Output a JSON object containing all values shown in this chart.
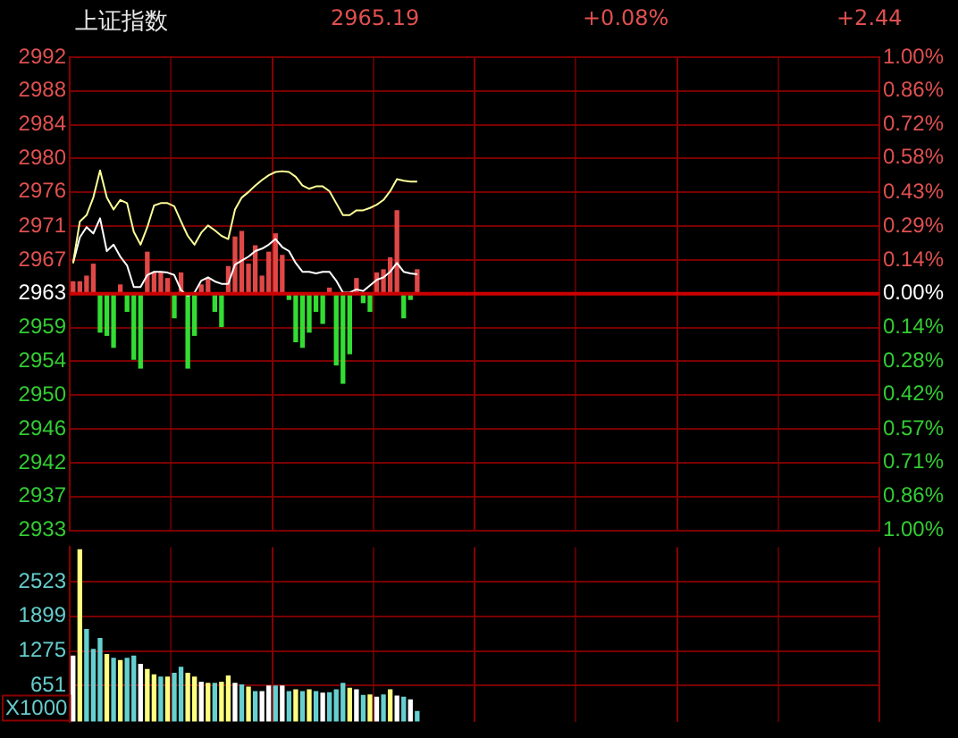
{
  "chart_data": [
    {
      "type": "line",
      "title": "上证指数",
      "annotations": [
        "2965.19",
        "+0.08%",
        "+2.44"
      ],
      "categories": [
        null,
        null,
        null,
        null,
        null,
        null,
        null,
        null,
        null,
        null,
        null,
        null,
        null,
        null,
        null,
        null,
        null,
        null,
        null,
        null,
        null,
        null,
        null,
        null,
        null,
        null,
        null,
        null,
        null,
        null,
        null,
        null,
        null,
        null,
        null,
        null,
        null,
        null,
        null,
        null,
        null,
        null,
        null,
        null,
        null,
        null,
        null,
        null,
        null,
        null,
        null,
        null,
        null,
        null,
        null,
        null,
        null,
        null,
        null,
        null,
        null,
        null,
        null,
        null,
        null,
        null,
        null,
        null,
        null,
        null,
        null,
        null,
        null,
        null,
        null,
        null,
        null,
        null,
        null,
        null,
        null,
        null,
        null,
        null,
        null,
        null,
        null,
        null,
        null,
        null,
        null,
        null,
        null,
        null,
        null,
        null,
        null,
        null,
        null,
        null,
        null,
        null,
        null,
        null,
        null,
        null,
        null,
        null,
        null,
        null,
        null,
        null,
        null,
        null,
        null,
        null,
        null,
        null,
        null,
        null
      ],
      "ylim": [
        2933.12,
        2992.38
      ],
      "yticks": [
        {
          "value": 2933.12,
          "label": "2933"
        },
        {
          "value": 2937.36,
          "label": "2937"
        },
        {
          "value": 2941.59,
          "label": "2942"
        },
        {
          "value": 2945.82,
          "label": "2946"
        },
        {
          "value": 2950.05,
          "label": "2950"
        },
        {
          "value": 2954.29,
          "label": "2954"
        },
        {
          "value": 2958.52,
          "label": "2959"
        },
        {
          "value": 2962.75,
          "label": "2963"
        },
        {
          "value": 2966.98,
          "label": "2967"
        },
        {
          "value": 2971.22,
          "label": "2971"
        },
        {
          "value": 2975.5,
          "label": "2976"
        },
        {
          "value": 2979.68,
          "label": "2980"
        },
        {
          "value": 2983.91,
          "label": "2984"
        },
        {
          "value": 2988.15,
          "label": "2988"
        },
        {
          "value": 2992.38,
          "label": "2992"
        }
      ],
      "y2lim": [
        -1,
        1
      ],
      "y2ticks": [
        {
          "value": -1,
          "label": "1.00%"
        },
        {
          "value": -0.857,
          "label": "0.86%"
        },
        {
          "value": -0.714,
          "label": "0.71%"
        },
        {
          "value": -0.571,
          "label": "0.57%"
        },
        {
          "value": -0.424,
          "label": "0.42%"
        },
        {
          "value": -0.284,
          "label": "0.28%"
        },
        {
          "value": -0.143,
          "label": "0.14%"
        },
        {
          "value": 0,
          "label": "0.00%"
        },
        {
          "value": 0.143,
          "label": "0.14%"
        },
        {
          "value": 0.286,
          "label": "0.29%"
        },
        {
          "value": 0.429,
          "label": "0.43%"
        },
        {
          "value": 0.575,
          "label": "0.58%"
        },
        {
          "value": 0.715,
          "label": "0.72%"
        },
        {
          "value": 0.857,
          "label": "0.86%"
        },
        {
          "value": 1,
          "label": "1.00%"
        }
      ],
      "grid": true,
      "tick_labels": "y",
      "ref_lines": [
        {
          "axis": "y",
          "value": 2962.75,
          "color": "#cc0000"
        }
      ],
      "series": [
        {
          "type": "bar",
          "base": [
            2962.75,
            2962.75,
            2962.75,
            2962.75,
            2962.75,
            2962.75,
            2962.75,
            2962.75,
            2962.75,
            2962.75,
            2962.75,
            2962.75,
            2962.75,
            2962.75,
            2962.75,
            2962.75,
            2962.75,
            2962.75,
            2962.75,
            2962.75,
            2962.75,
            2962.75,
            2962.75,
            2962.75,
            2962.75,
            2962.75,
            2962.75,
            2962.75,
            2962.75,
            2962.75,
            2962.75,
            2962.75,
            2962.75,
            2962.75,
            2962.75,
            2962.75,
            2962.75,
            2962.75,
            2962.75,
            2962.75,
            2962.75,
            2962.75,
            2962.75,
            2962.75,
            2962.75,
            2962.75,
            2962.75,
            2962.75,
            2962.75,
            2962.75,
            2962.75,
            2962.75,
            null,
            null,
            null,
            null,
            null,
            null,
            null,
            null,
            null,
            null,
            null,
            null,
            null,
            null,
            null,
            null,
            null,
            null,
            null,
            null,
            null,
            null,
            null,
            null,
            null,
            null,
            null,
            null,
            null,
            null,
            null,
            null,
            null,
            null,
            null,
            null,
            null,
            null,
            null,
            null,
            null,
            null,
            null,
            null,
            null,
            null,
            null,
            null,
            null,
            null,
            null,
            null,
            null,
            null,
            null,
            null,
            null,
            null,
            null,
            null,
            null,
            null,
            null,
            null,
            null,
            null,
            null,
            null
          ],
          "values": [
            1.5,
            1.5,
            2.2,
            3.7,
            -4.8,
            -5.2,
            -6.7,
            1.1,
            -2.2,
            -8.2,
            -9.3,
            5.2,
            2.6,
            2.6,
            1.9,
            -3.0,
            2.6,
            -9.3,
            -5.2,
            1.1,
            1.9,
            -2.2,
            -4.1,
            3.4,
            7.1,
            7.8,
            3.7,
            6.0,
            2.2,
            5.2,
            7.5,
            4.8,
            -0.7,
            -6.0,
            -6.7,
            -4.8,
            -2.2,
            -3.7,
            0.7,
            -8.9,
            -11.2,
            -7.5,
            1.9,
            -1.1,
            -2.2,
            2.6,
            3.0,
            4.5,
            10.4,
            -3.0,
            -0.7,
            3.0,
            null,
            null,
            null,
            null,
            null,
            null,
            null,
            null,
            null,
            null,
            null,
            null,
            null,
            null,
            null,
            null,
            null,
            null,
            null,
            null,
            null,
            null,
            null,
            null,
            null,
            null,
            null,
            null,
            null,
            null,
            null,
            null,
            null,
            null,
            null,
            null,
            null,
            null,
            null,
            null,
            null,
            null,
            null,
            null,
            null,
            null,
            null,
            null,
            null,
            null,
            null,
            null,
            null,
            null,
            null,
            null,
            null,
            null,
            null,
            null,
            null,
            null,
            null,
            null,
            null,
            null,
            null,
            null
          ],
          "colors": [
            "#e04848",
            "#e04848",
            "#e04848",
            "#e04848",
            "#33dd33",
            "#33dd33",
            "#33dd33",
            "#e04848",
            "#33dd33",
            "#33dd33",
            "#33dd33",
            "#e04848",
            "#e04848",
            "#e04848",
            "#e04848",
            "#33dd33",
            "#e04848",
            "#33dd33",
            "#33dd33",
            "#e04848",
            "#e04848",
            "#33dd33",
            "#33dd33",
            "#e04848",
            "#e04848",
            "#e04848",
            "#e04848",
            "#e04848",
            "#e04848",
            "#e04848",
            "#e04848",
            "#e04848",
            "#33dd33",
            "#33dd33",
            "#33dd33",
            "#33dd33",
            "#33dd33",
            "#33dd33",
            "#e04848",
            "#33dd33",
            "#33dd33",
            "#33dd33",
            "#e04848",
            "#33dd33",
            "#33dd33",
            "#e04848",
            "#e04848",
            "#e04848",
            "#e04848",
            "#33dd33",
            "#33dd33",
            "#e04848",
            null,
            null,
            null,
            null,
            null,
            null,
            null,
            null,
            null,
            null,
            null,
            null,
            null,
            null,
            null,
            null,
            null,
            null,
            null,
            null,
            null,
            null,
            null,
            null,
            null,
            null,
            null,
            null,
            null,
            null,
            null,
            null,
            null,
            null,
            null,
            null,
            null,
            null,
            null,
            null,
            null,
            null,
            null,
            null,
            null,
            null,
            null,
            null,
            null,
            null,
            null,
            null,
            null,
            null,
            null,
            null,
            null,
            null,
            null,
            null,
            null,
            null,
            null,
            null,
            null,
            null,
            null,
            null
          ]
        },
        {
          "type": "line",
          "color": "#ffff99",
          "values": [
            2966.6,
            2971.8,
            2972.6,
            2974.8,
            2978.2,
            2974.8,
            2973.3,
            2974.5,
            2974.1,
            2970.5,
            2968.9,
            2971.1,
            2973.8,
            2974.1,
            2974.1,
            2973.7,
            2971.8,
            2970.0,
            2968.9,
            2970.4,
            2971.3,
            2970.7,
            2970.0,
            2969.6,
            2973.3,
            2974.8,
            2975.5,
            2976.3,
            2977.0,
            2977.6,
            2978.0,
            2978.1,
            2978.0,
            2977.4,
            2976.3,
            2975.9,
            2976.2,
            2976.2,
            2975.6,
            2974.1,
            2972.6,
            2972.6,
            2973.2,
            2973.2,
            2973.5,
            2973.9,
            2974.5,
            2975.6,
            2977.1,
            2976.9,
            2976.8,
            2976.8,
            null,
            null,
            null,
            null,
            null,
            null,
            null,
            null,
            null,
            null,
            null,
            null,
            null,
            null,
            null,
            null,
            null,
            null,
            null,
            null,
            null,
            null,
            null,
            null,
            null,
            null,
            null,
            null,
            null,
            null,
            null,
            null,
            null,
            null,
            null,
            null,
            null,
            null,
            null,
            null,
            null,
            null,
            null,
            null,
            null,
            null,
            null,
            null,
            null,
            null,
            null,
            null,
            null,
            null,
            null,
            null,
            null,
            null,
            null,
            null,
            null,
            null,
            null,
            null,
            null,
            null,
            null,
            null
          ]
        },
        {
          "type": "line",
          "color": "#ffffff",
          "values": [
            2966.6,
            2969.8,
            2971.1,
            2970.3,
            2972.2,
            2968.1,
            2968.9,
            2967.4,
            2966.3,
            2963.6,
            2963.6,
            2965.1,
            2965.5,
            2965.5,
            2965.4,
            2965.1,
            2963.2,
            2962.5,
            2962.9,
            2964.4,
            2964.8,
            2964.3,
            2964.0,
            2964.0,
            2966.4,
            2966.9,
            2967.4,
            2968.1,
            2968.4,
            2968.9,
            2969.6,
            2968.6,
            2968.1,
            2966.6,
            2965.5,
            2965.5,
            2965.3,
            2965.5,
            2965.5,
            2964.4,
            2962.9,
            2962.9,
            2963.3,
            2963.1,
            2963.8,
            2964.5,
            2964.8,
            2965.5,
            2966.6,
            2965.5,
            2965.3,
            2965.2,
            null,
            null,
            null,
            null,
            null,
            null,
            null,
            null,
            null,
            null,
            null,
            null,
            null,
            null,
            null,
            null,
            null,
            null,
            null,
            null,
            null,
            null,
            null,
            null,
            null,
            null,
            null,
            null,
            null,
            null,
            null,
            null,
            null,
            null,
            null,
            null,
            null,
            null,
            null,
            null,
            null,
            null,
            null,
            null,
            null,
            null,
            null,
            null,
            null,
            null,
            null,
            null,
            null,
            null,
            null,
            null,
            null,
            null,
            null,
            null,
            null,
            null,
            null,
            null,
            null,
            null,
            null,
            null
          ]
        }
      ]
    },
    {
      "type": "bar",
      "annotations": [
        "X1000"
      ],
      "categories": [
        null,
        null,
        null,
        null,
        null,
        null,
        null,
        null,
        null,
        null,
        null,
        null,
        null,
        null,
        null,
        null,
        null,
        null,
        null,
        null,
        null,
        null,
        null,
        null,
        null,
        null,
        null,
        null,
        null,
        null,
        null,
        null,
        null,
        null,
        null,
        null,
        null,
        null,
        null,
        null,
        null,
        null,
        null,
        null,
        null,
        null,
        null,
        null,
        null,
        null,
        null,
        null,
        null,
        null,
        null,
        null,
        null,
        null,
        null,
        null,
        null,
        null,
        null,
        null,
        null,
        null,
        null,
        null,
        null,
        null,
        null,
        null,
        null,
        null,
        null,
        null,
        null,
        null,
        null,
        null,
        null,
        null,
        null,
        null,
        null,
        null,
        null,
        null,
        null,
        null,
        null,
        null,
        null,
        null,
        null,
        null,
        null,
        null,
        null,
        null,
        null,
        null,
        null,
        null,
        null,
        null,
        null,
        null,
        null,
        null,
        null,
        null,
        null,
        null,
        null,
        null,
        null,
        null,
        null,
        null
      ],
      "ylim": [
        0,
        3147
      ],
      "yticks": [
        651,
        1275,
        1899,
        2523
      ],
      "grid": true,
      "tick_labels": "y",
      "values": [
        1180,
        3100,
        1660,
        1300,
        1500,
        1210,
        1140,
        1100,
        1140,
        1180,
        1030,
        940,
        840,
        800,
        800,
        870,
        980,
        870,
        800,
        710,
        690,
        690,
        710,
        820,
        690,
        660,
        620,
        540,
        540,
        640,
        640,
        640,
        540,
        570,
        540,
        570,
        540,
        510,
        520,
        570,
        690,
        600,
        570,
        470,
        480,
        440,
        480,
        570,
        460,
        440,
        390,
        180,
        null,
        null,
        null,
        null,
        null,
        null,
        null,
        null,
        null,
        null,
        null,
        null,
        null,
        null,
        null,
        null,
        null,
        null,
        null,
        null,
        null,
        null,
        null,
        null,
        null,
        null,
        null,
        null,
        null,
        null,
        null,
        null,
        null,
        null,
        null,
        null,
        null,
        null,
        null,
        null,
        null,
        null,
        null,
        null,
        null,
        null,
        null,
        null,
        null,
        null,
        null,
        null,
        null,
        null,
        null,
        null,
        null,
        null,
        null,
        null,
        null,
        null,
        null,
        null,
        null,
        null,
        null,
        null
      ],
      "colors": [
        "#ffffff",
        "#ffff80",
        "#66d0d0",
        "#66d0d0",
        "#66d0d0",
        "#ffff80",
        "#66d0d0",
        "#ffff80",
        "#66d0d0",
        "#66d0d0",
        "#ffffff",
        "#ffff80",
        "#ffff80",
        "#66d0d0",
        "#ffff80",
        "#66d0d0",
        "#66d0d0",
        "#ffff80",
        "#ffff80",
        "#ffffff",
        "#ffff80",
        "#66d0d0",
        "#ffff80",
        "#ffff80",
        "#ffffff",
        "#66d0d0",
        "#ffff80",
        "#66d0d0",
        "#ffffff",
        "#ffffff",
        "#66d0d0",
        "#ffffff",
        "#66d0d0",
        "#ffff80",
        "#66d0d0",
        "#ffff80",
        "#66d0d0",
        "#ffffff",
        "#66d0d0",
        "#66d0d0",
        "#66d0d0",
        "#ffff80",
        "#ffffff",
        "#66d0d0",
        "#ffff80",
        "#ffffff",
        "#66d0d0",
        "#ffff80",
        "#ffffff",
        "#66d0d0",
        "#ffffff",
        "#66d0d0",
        null,
        null,
        null,
        null,
        null,
        null,
        null,
        null,
        null,
        null,
        null,
        null,
        null,
        null,
        null,
        null,
        null,
        null,
        null,
        null,
        null,
        null,
        null,
        null,
        null,
        null,
        null,
        null,
        null,
        null,
        null,
        null,
        null,
        null,
        null,
        null,
        null,
        null,
        null,
        null,
        null,
        null,
        null,
        null,
        null,
        null,
        null,
        null,
        null,
        null,
        null,
        null,
        null,
        null,
        null,
        null,
        null,
        null,
        null,
        null,
        null,
        null,
        null,
        null,
        null,
        null,
        null,
        null
      ]
    }
  ]
}
